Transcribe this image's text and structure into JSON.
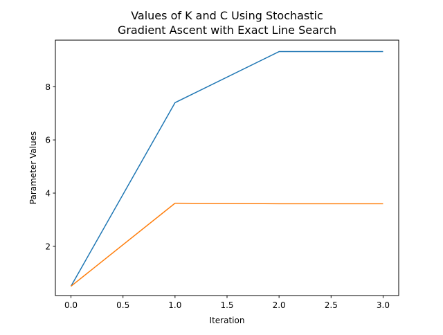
{
  "chart_data": {
    "type": "line",
    "title_lines": [
      "Values of K and C Using Stochastic",
      "Gradient Ascent with Exact Line Search"
    ],
    "xlabel": "Iteration",
    "ylabel": "Parameter Values",
    "xlim": [
      -0.15,
      3.15
    ],
    "ylim": [
      0.15,
      9.75
    ],
    "x_ticks": [
      0.0,
      0.5,
      1.0,
      1.5,
      2.0,
      2.5,
      3.0
    ],
    "x_tick_labels": [
      "0.0",
      "0.5",
      "1.0",
      "1.5",
      "2.0",
      "2.5",
      "3.0"
    ],
    "y_ticks": [
      2,
      4,
      6,
      8
    ],
    "y_tick_labels": [
      "2",
      "4",
      "6",
      "8"
    ],
    "grid": false,
    "legend": false,
    "x": [
      0,
      1,
      2,
      3
    ],
    "series": [
      {
        "values": [
          0.5,
          7.4,
          9.32,
          9.32
        ],
        "color": "#1f77b4"
      },
      {
        "values": [
          0.5,
          3.62,
          3.6,
          3.6
        ],
        "color": "#ff7f0e"
      }
    ]
  }
}
